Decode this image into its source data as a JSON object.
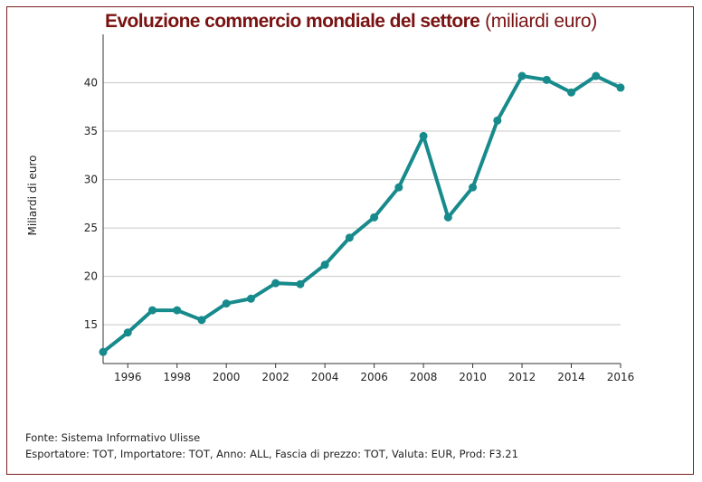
{
  "title": {
    "main": "Evoluzione commercio mondiale del settore",
    "unit": "(miliardi euro)"
  },
  "footer": {
    "source": "Fonte: Sistema Informativo Ulisse",
    "params": "Esportatore: TOT, Importatore: TOT, Anno: ALL, Fascia di prezzo: TOT, Valuta: EUR, Prod: F3.21"
  },
  "colors": {
    "line": "#178a8c",
    "title": "#7a1212",
    "frame": "#7a1f1f",
    "grid": "#c8c8c8"
  },
  "chart_data": {
    "type": "line",
    "title": "Evoluzione commercio mondiale del settore (miliardi euro)",
    "xlabel": "",
    "ylabel": "Miliardi di euro",
    "xlim": [
      1995,
      2016
    ],
    "ylim": [
      11,
      45
    ],
    "x_ticks": [
      1996,
      1998,
      2000,
      2002,
      2004,
      2006,
      2008,
      2010,
      2012,
      2014,
      2016
    ],
    "y_ticks": [
      15,
      20,
      25,
      30,
      35,
      40
    ],
    "grid": "horizontal",
    "legend": "none",
    "series": [
      {
        "x": [
          1995,
          1996,
          1997,
          1998,
          1999,
          2000,
          2001,
          2002,
          2003,
          2004,
          2005,
          2006,
          2007,
          2008,
          2009,
          2010,
          2011,
          2012,
          2013,
          2014,
          2015,
          2016
        ],
        "values": [
          12.2,
          14.2,
          16.5,
          16.5,
          15.5,
          17.2,
          17.7,
          19.3,
          19.2,
          21.2,
          24.0,
          26.1,
          29.2,
          34.5,
          26.1,
          29.2,
          36.1,
          40.7,
          40.3,
          39.0,
          40.7,
          39.5
        ]
      }
    ]
  }
}
